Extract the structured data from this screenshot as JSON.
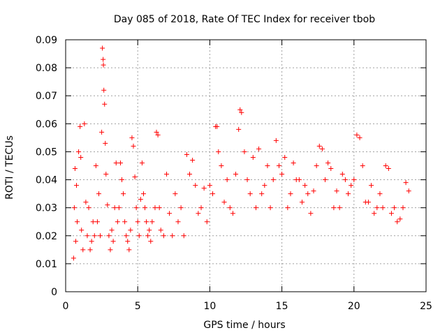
{
  "chart_data": {
    "type": "scatter",
    "title": "Day 085 of 2018, Rate Of TEC Index for receiver tbob",
    "xlabel": "GPS time / hours",
    "ylabel": "ROTI / TECUs",
    "xlim": [
      0,
      25
    ],
    "ylim": [
      0,
      0.09
    ],
    "xticks": [
      0,
      5,
      10,
      15,
      20,
      25
    ],
    "xtick_labels": [
      "0",
      "5",
      "10",
      "15",
      "20",
      "25"
    ],
    "yticks": [
      0,
      0.01,
      0.02,
      0.03,
      0.04,
      0.05,
      0.06,
      0.07,
      0.08,
      0.09
    ],
    "ytick_labels": [
      "0",
      "0.01",
      "0.02",
      "0.03",
      "0.04",
      "0.05",
      "0.06",
      "0.07",
      "0.08",
      "0.09"
    ],
    "grid": true,
    "marker": "+",
    "color": "#ff0000",
    "series": [
      {
        "name": "ROTI",
        "x": [
          0.55,
          0.6,
          0.65,
          0.7,
          0.75,
          0.8,
          0.9,
          1.0,
          1.05,
          1.1,
          1.2,
          1.3,
          1.4,
          1.5,
          1.6,
          1.7,
          1.8,
          1.9,
          2.0,
          2.1,
          2.2,
          2.3,
          2.4,
          2.5,
          2.55,
          2.6,
          2.62,
          2.65,
          2.7,
          2.75,
          2.8,
          2.9,
          3.0,
          3.1,
          3.2,
          3.3,
          3.4,
          3.5,
          3.6,
          3.7,
          3.8,
          3.9,
          4.0,
          4.1,
          4.2,
          4.3,
          4.4,
          4.5,
          4.6,
          4.7,
          4.8,
          4.9,
          5.0,
          5.1,
          5.2,
          5.3,
          5.4,
          5.5,
          5.6,
          5.7,
          5.8,
          5.9,
          6.0,
          6.2,
          6.3,
          6.4,
          6.5,
          6.6,
          6.8,
          7.0,
          7.2,
          7.4,
          7.6,
          7.8,
          8.0,
          8.2,
          8.4,
          8.6,
          8.8,
          9.0,
          9.2,
          9.4,
          9.6,
          9.8,
          10.0,
          10.2,
          10.4,
          10.5,
          10.6,
          10.8,
          11.0,
          11.2,
          11.4,
          11.6,
          11.8,
          12.0,
          12.1,
          12.2,
          12.4,
          12.6,
          12.8,
          13.0,
          13.2,
          13.4,
          13.6,
          13.8,
          14.0,
          14.2,
          14.4,
          14.6,
          14.8,
          15.0,
          15.2,
          15.4,
          15.6,
          15.8,
          16.0,
          16.2,
          16.4,
          16.6,
          16.8,
          17.0,
          17.2,
          17.4,
          17.6,
          17.8,
          18.0,
          18.2,
          18.4,
          18.6,
          18.8,
          19.0,
          19.2,
          19.4,
          19.6,
          19.8,
          20.0,
          20.2,
          20.4,
          20.6,
          20.8,
          21.0,
          21.2,
          21.4,
          21.6,
          21.8,
          22.0,
          22.2,
          22.4,
          22.6,
          22.8,
          23.0,
          23.2,
          23.4,
          23.6,
          23.8
        ],
        "y": [
          0.012,
          0.03,
          0.044,
          0.018,
          0.038,
          0.025,
          0.05,
          0.059,
          0.048,
          0.022,
          0.015,
          0.06,
          0.032,
          0.02,
          0.03,
          0.015,
          0.018,
          0.025,
          0.02,
          0.045,
          0.025,
          0.035,
          0.02,
          0.057,
          0.087,
          0.083,
          0.081,
          0.072,
          0.067,
          0.053,
          0.042,
          0.031,
          0.02,
          0.015,
          0.022,
          0.018,
          0.03,
          0.046,
          0.025,
          0.03,
          0.046,
          0.04,
          0.035,
          0.025,
          0.02,
          0.018,
          0.015,
          0.022,
          0.055,
          0.052,
          0.041,
          0.03,
          0.025,
          0.02,
          0.033,
          0.046,
          0.035,
          0.03,
          0.025,
          0.02,
          0.022,
          0.018,
          0.025,
          0.03,
          0.057,
          0.056,
          0.03,
          0.022,
          0.02,
          0.042,
          0.028,
          0.02,
          0.035,
          0.025,
          0.03,
          0.02,
          0.049,
          0.042,
          0.047,
          0.038,
          0.028,
          0.03,
          0.037,
          0.025,
          0.038,
          0.035,
          0.059,
          0.059,
          0.05,
          0.045,
          0.032,
          0.04,
          0.03,
          0.028,
          0.042,
          0.058,
          0.065,
          0.064,
          0.05,
          0.04,
          0.035,
          0.048,
          0.03,
          0.051,
          0.035,
          0.038,
          0.045,
          0.03,
          0.04,
          0.054,
          0.045,
          0.042,
          0.048,
          0.03,
          0.035,
          0.046,
          0.04,
          0.04,
          0.032,
          0.038,
          0.035,
          0.028,
          0.036,
          0.045,
          0.052,
          0.051,
          0.04,
          0.046,
          0.044,
          0.03,
          0.036,
          0.03,
          0.042,
          0.04,
          0.035,
          0.038,
          0.04,
          0.056,
          0.055,
          0.045,
          0.032,
          0.032,
          0.038,
          0.028,
          0.03,
          0.035,
          0.03,
          0.045,
          0.044,
          0.028,
          0.03,
          0.025,
          0.026,
          0.03,
          0.039,
          0.036
        ]
      }
    ]
  }
}
